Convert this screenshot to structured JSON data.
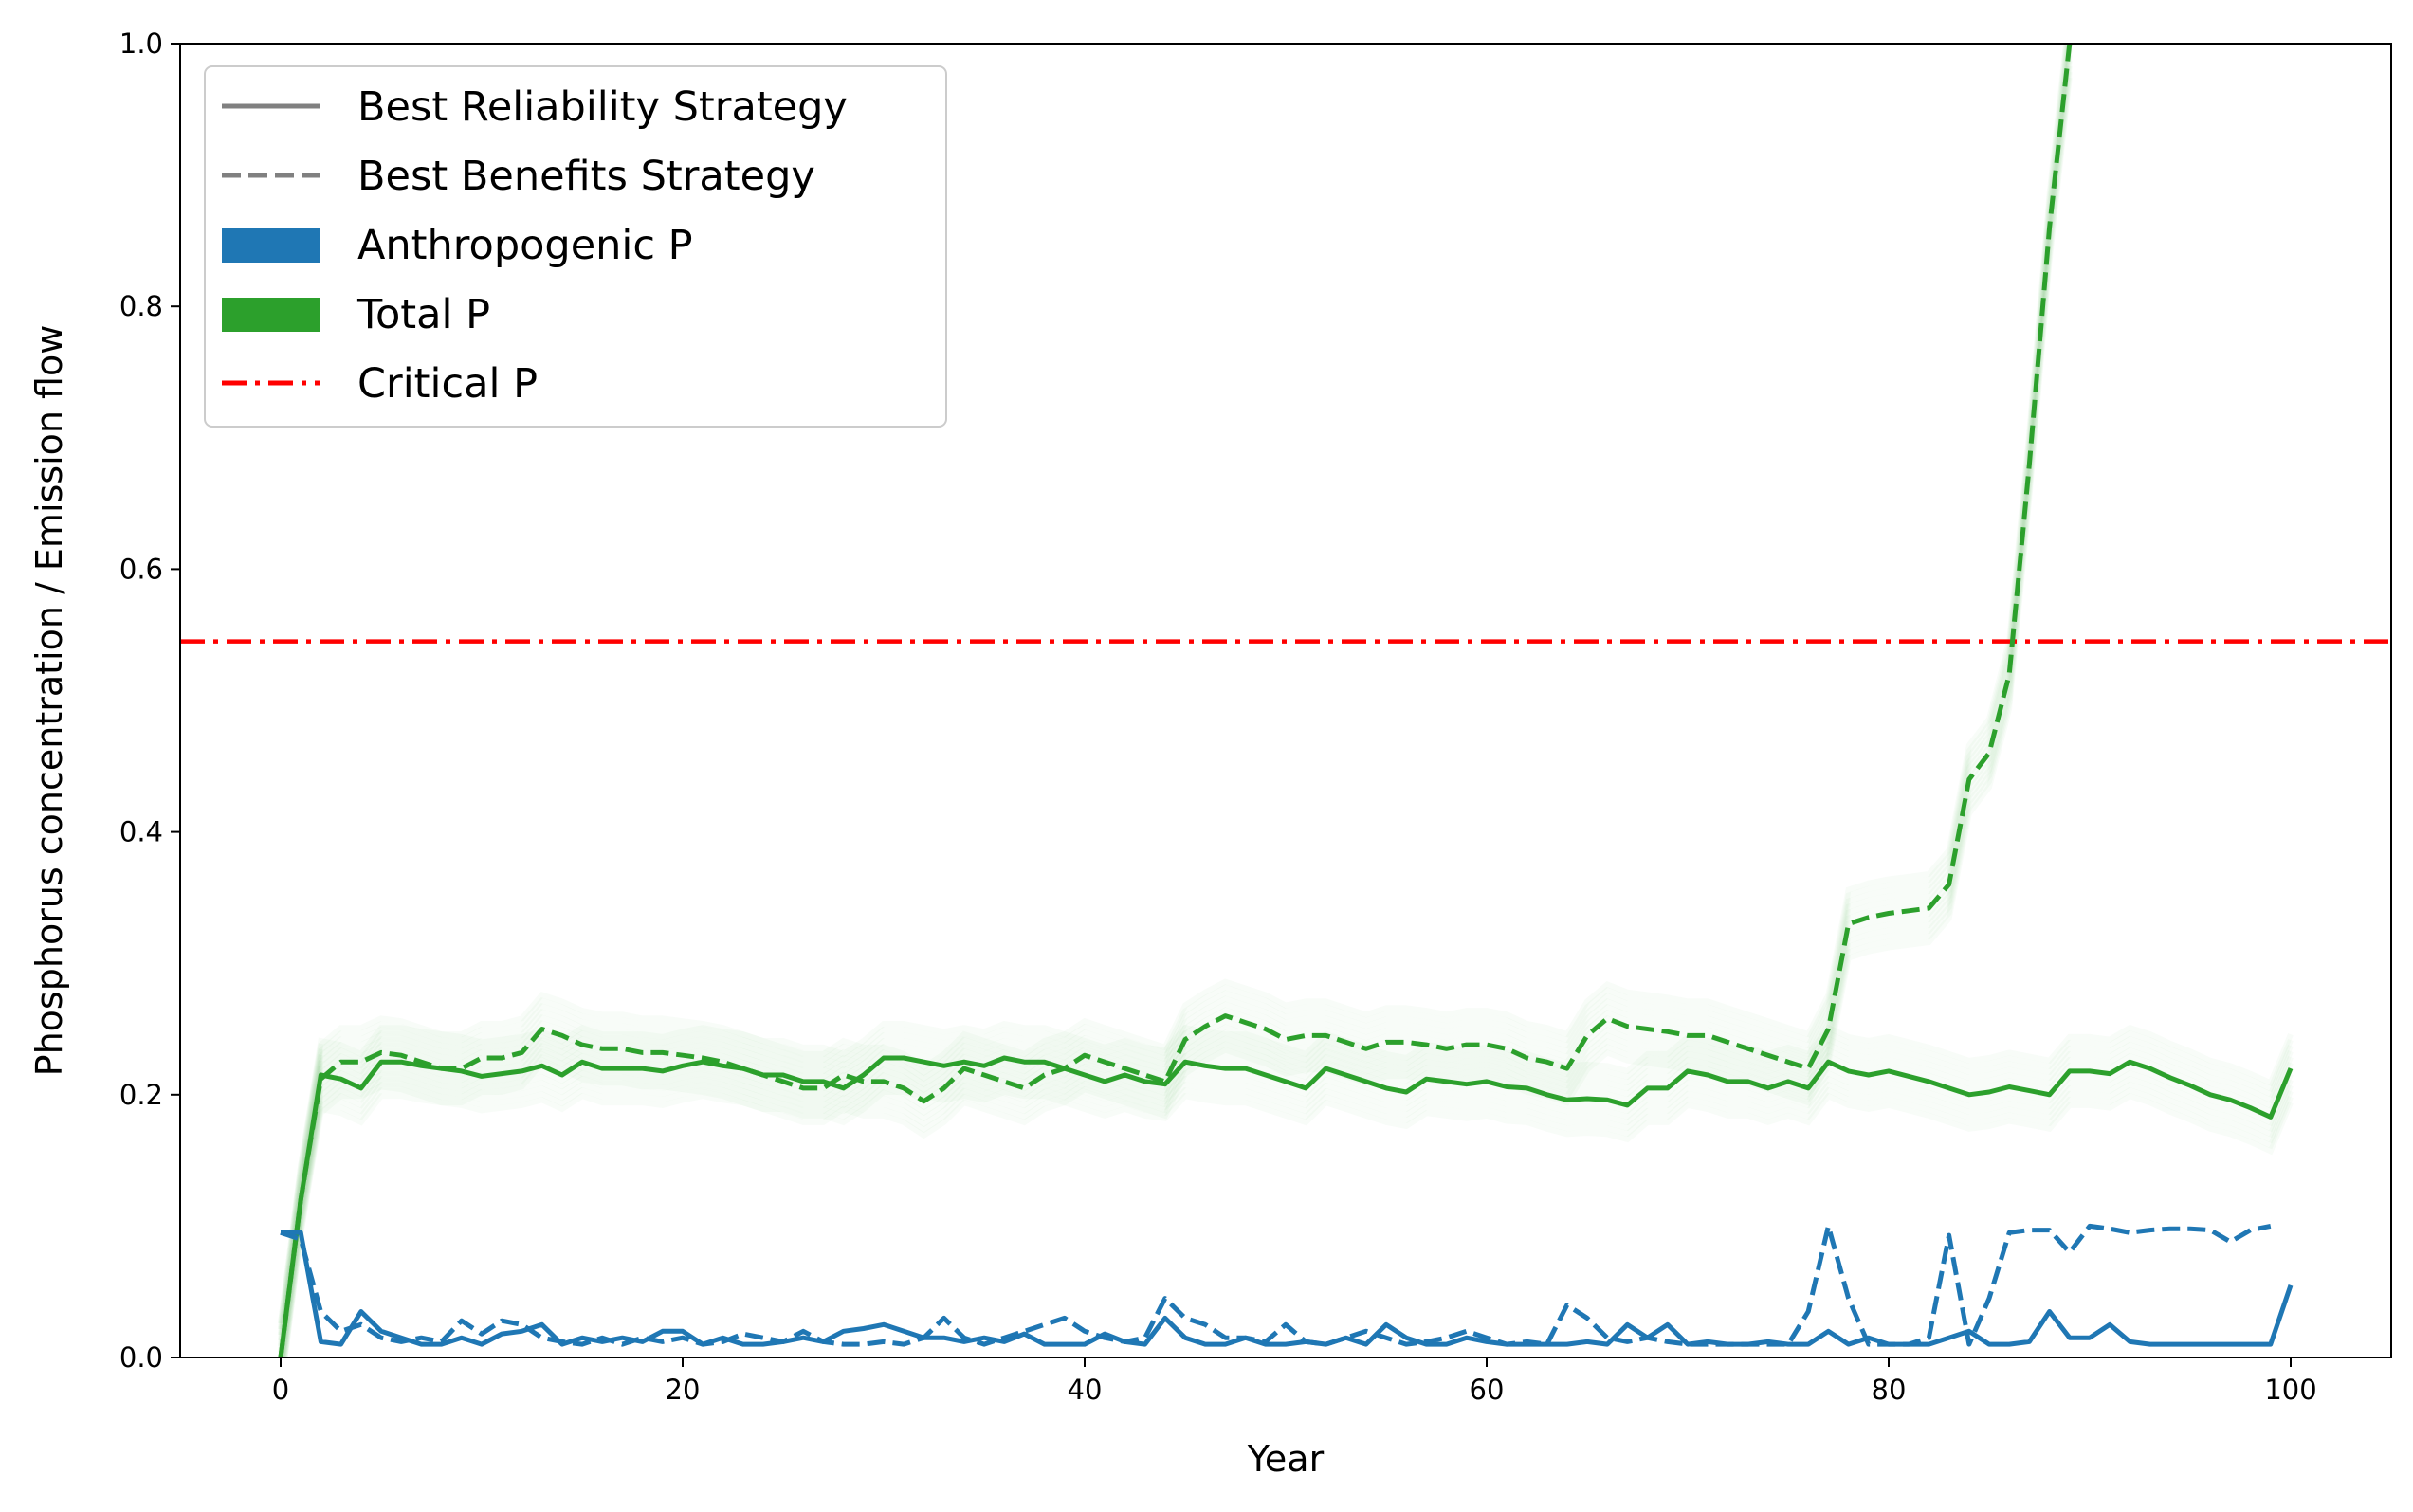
{
  "chart_data": {
    "type": "line",
    "xlabel": "Year",
    "ylabel": "Phosphorus concentration / Emission flow",
    "xlim": [
      -5,
      105
    ],
    "ylim": [
      0,
      1.0
    ],
    "xticks": [
      0,
      20,
      40,
      60,
      80,
      100
    ],
    "yticks": [
      0.0,
      0.2,
      0.4,
      0.6,
      0.8,
      1.0
    ],
    "ytick_labels": [
      "0.0",
      "0.2",
      "0.4",
      "0.6",
      "0.8",
      "1.0"
    ],
    "grid": false,
    "legend": {
      "placement": "top-left",
      "entries": [
        {
          "label": "Best Reliability Strategy",
          "style": "solid-line",
          "color": "#808080"
        },
        {
          "label": "Best Benefits Strategy",
          "style": "dashed-line",
          "color": "#808080"
        },
        {
          "label": "Anthropogenic P",
          "style": "patch",
          "color": "#1f77b4"
        },
        {
          "label": "Total P",
          "style": "patch",
          "color": "#2ca02c"
        },
        {
          "label": "Critical P",
          "style": "dashdot-line",
          "color": "#ff0000"
        }
      ]
    },
    "critical_p": 0.545,
    "colors": {
      "anthropogenic": "#1f77b4",
      "total": "#2ca02c",
      "critical": "#ff0000"
    },
    "series": [
      {
        "name": "Total P",
        "strategy": "Best Reliability Strategy",
        "style": "solid",
        "color": "#2ca02c",
        "x": [
          0,
          1,
          2,
          3,
          4,
          5,
          6,
          7,
          8,
          9,
          10,
          11,
          12,
          13,
          14,
          15,
          16,
          17,
          18,
          19,
          20,
          21,
          22,
          23,
          24,
          25,
          26,
          27,
          28,
          29,
          30,
          31,
          32,
          33,
          34,
          35,
          36,
          37,
          38,
          39,
          40,
          41,
          42,
          43,
          44,
          45,
          46,
          47,
          48,
          49,
          50,
          51,
          52,
          53,
          54,
          55,
          56,
          57,
          58,
          59,
          60,
          61,
          62,
          63,
          64,
          65,
          66,
          67,
          68,
          69,
          70,
          71,
          72,
          73,
          74,
          75,
          76,
          77,
          78,
          79,
          80,
          81,
          82,
          83,
          84,
          85,
          86,
          87,
          88,
          89,
          90,
          91,
          92,
          93,
          94,
          95,
          96,
          97,
          98,
          99,
          100
        ],
        "y": [
          0,
          0.12,
          0.215,
          0.212,
          0.205,
          0.225,
          0.225,
          0.222,
          0.22,
          0.218,
          0.214,
          0.216,
          0.218,
          0.222,
          0.215,
          0.225,
          0.22,
          0.22,
          0.22,
          0.218,
          0.222,
          0.225,
          0.222,
          0.22,
          0.215,
          0.215,
          0.21,
          0.21,
          0.205,
          0.215,
          0.228,
          0.228,
          0.225,
          0.222,
          0.225,
          0.222,
          0.228,
          0.225,
          0.225,
          0.22,
          0.215,
          0.21,
          0.215,
          0.21,
          0.208,
          0.225,
          0.222,
          0.22,
          0.22,
          0.215,
          0.21,
          0.205,
          0.22,
          0.215,
          0.21,
          0.205,
          0.202,
          0.212,
          0.21,
          0.208,
          0.21,
          0.206,
          0.205,
          0.2,
          0.196,
          0.197,
          0.196,
          0.192,
          0.205,
          0.205,
          0.218,
          0.215,
          0.21,
          0.21,
          0.205,
          0.21,
          0.205,
          0.225,
          0.218,
          0.215,
          0.218,
          0.214,
          0.21,
          0.205,
          0.2,
          0.202,
          0.206,
          0.203,
          0.2,
          0.218,
          0.218,
          0.216,
          0.225,
          0.22,
          0.213,
          0.207,
          0.2,
          0.196,
          0.19,
          0.183,
          0.22
        ]
      },
      {
        "name": "Total P",
        "strategy": "Best Benefits Strategy",
        "style": "dashed",
        "color": "#2ca02c",
        "x": [
          0,
          1,
          2,
          3,
          4,
          5,
          6,
          7,
          8,
          9,
          10,
          11,
          12,
          13,
          14,
          15,
          16,
          17,
          18,
          19,
          20,
          21,
          22,
          23,
          24,
          25,
          26,
          27,
          28,
          29,
          30,
          31,
          32,
          33,
          34,
          35,
          36,
          37,
          38,
          39,
          40,
          41,
          42,
          43,
          44,
          45,
          46,
          47,
          48,
          49,
          50,
          51,
          52,
          53,
          54,
          55,
          56,
          57,
          58,
          59,
          60,
          61,
          62,
          63,
          64,
          65,
          66,
          67,
          68,
          69,
          70,
          71,
          72,
          73,
          74,
          75,
          76,
          77,
          78,
          79,
          80,
          81,
          82,
          83,
          84,
          85,
          86,
          87,
          88,
          89
        ],
        "y": [
          0,
          0.12,
          0.212,
          0.225,
          0.225,
          0.232,
          0.23,
          0.225,
          0.22,
          0.22,
          0.228,
          0.228,
          0.232,
          0.25,
          0.245,
          0.238,
          0.235,
          0.235,
          0.232,
          0.232,
          0.23,
          0.228,
          0.225,
          0.22,
          0.215,
          0.21,
          0.205,
          0.205,
          0.215,
          0.21,
          0.21,
          0.205,
          0.195,
          0.205,
          0.22,
          0.215,
          0.21,
          0.205,
          0.215,
          0.22,
          0.23,
          0.225,
          0.22,
          0.215,
          0.21,
          0.242,
          0.252,
          0.26,
          0.255,
          0.25,
          0.242,
          0.245,
          0.245,
          0.24,
          0.235,
          0.24,
          0.24,
          0.238,
          0.235,
          0.238,
          0.238,
          0.235,
          0.228,
          0.225,
          0.22,
          0.245,
          0.258,
          0.252,
          0.25,
          0.248,
          0.245,
          0.245,
          0.24,
          0.235,
          0.23,
          0.225,
          0.22,
          0.25,
          0.33,
          0.335,
          0.338,
          0.34,
          0.342,
          0.36,
          0.44,
          0.46,
          0.52,
          0.68,
          0.86,
          1.0
        ]
      },
      {
        "name": "Anthropogenic P",
        "strategy": "Best Reliability Strategy",
        "style": "solid",
        "color": "#1f77b4",
        "x": [
          0,
          1,
          2,
          3,
          4,
          5,
          6,
          7,
          8,
          9,
          10,
          11,
          12,
          13,
          14,
          15,
          16,
          17,
          18,
          19,
          20,
          21,
          22,
          23,
          24,
          25,
          26,
          27,
          28,
          29,
          30,
          31,
          32,
          33,
          34,
          35,
          36,
          37,
          38,
          39,
          40,
          41,
          42,
          43,
          44,
          45,
          46,
          47,
          48,
          49,
          50,
          51,
          52,
          53,
          54,
          55,
          56,
          57,
          58,
          59,
          60,
          61,
          62,
          63,
          64,
          65,
          66,
          67,
          68,
          69,
          70,
          71,
          72,
          73,
          74,
          75,
          76,
          77,
          78,
          79,
          80,
          81,
          82,
          83,
          84,
          85,
          86,
          87,
          88,
          89,
          90,
          91,
          92,
          93,
          94,
          95,
          96,
          97,
          98,
          99,
          100
        ],
        "y": [
          0.095,
          0.095,
          0.012,
          0.01,
          0.035,
          0.02,
          0.015,
          0.01,
          0.01,
          0.015,
          0.01,
          0.018,
          0.02,
          0.025,
          0.01,
          0.015,
          0.012,
          0.015,
          0.012,
          0.02,
          0.02,
          0.01,
          0.015,
          0.01,
          0.01,
          0.012,
          0.015,
          0.012,
          0.02,
          0.022,
          0.025,
          0.02,
          0.015,
          0.015,
          0.012,
          0.015,
          0.012,
          0.018,
          0.01,
          0.01,
          0.01,
          0.018,
          0.012,
          0.01,
          0.03,
          0.015,
          0.01,
          0.01,
          0.015,
          0.01,
          0.01,
          0.012,
          0.01,
          0.015,
          0.01,
          0.025,
          0.015,
          0.01,
          0.01,
          0.015,
          0.012,
          0.01,
          0.01,
          0.01,
          0.01,
          0.012,
          0.01,
          0.025,
          0.015,
          0.025,
          0.01,
          0.012,
          0.01,
          0.01,
          0.012,
          0.01,
          0.01,
          0.02,
          0.01,
          0.015,
          0.01,
          0.01,
          0.01,
          0.015,
          0.02,
          0.01,
          0.01,
          0.012,
          0.035,
          0.015,
          0.015,
          0.025,
          0.012,
          0.01,
          0.01,
          0.01,
          0.01,
          0.01,
          0.01,
          0.01,
          0.055
        ]
      },
      {
        "name": "Anthropogenic P",
        "strategy": "Best Benefits Strategy",
        "style": "dashed",
        "color": "#1f77b4",
        "x": [
          0,
          1,
          2,
          3,
          4,
          5,
          6,
          7,
          8,
          9,
          10,
          11,
          12,
          13,
          14,
          15,
          16,
          17,
          18,
          19,
          20,
          21,
          22,
          23,
          24,
          25,
          26,
          27,
          28,
          29,
          30,
          31,
          32,
          33,
          34,
          35,
          36,
          37,
          38,
          39,
          40,
          41,
          42,
          43,
          44,
          45,
          46,
          47,
          48,
          49,
          50,
          51,
          52,
          53,
          54,
          55,
          56,
          57,
          58,
          59,
          60,
          61,
          62,
          63,
          64,
          65,
          66,
          67,
          68,
          69,
          70,
          71,
          72,
          73,
          74,
          75,
          76,
          77,
          78,
          79,
          80,
          81,
          82,
          83,
          84,
          85,
          86,
          87,
          88,
          89,
          90,
          91,
          92,
          93,
          94,
          95,
          96,
          97,
          98,
          99
        ],
        "y": [
          0.095,
          0.09,
          0.035,
          0.02,
          0.025,
          0.015,
          0.012,
          0.015,
          0.012,
          0.028,
          0.018,
          0.028,
          0.025,
          0.015,
          0.012,
          0.01,
          0.015,
          0.01,
          0.015,
          0.012,
          0.015,
          0.01,
          0.012,
          0.018,
          0.015,
          0.012,
          0.02,
          0.012,
          0.01,
          0.01,
          0.012,
          0.01,
          0.015,
          0.03,
          0.015,
          0.01,
          0.015,
          0.02,
          0.025,
          0.03,
          0.02,
          0.015,
          0.012,
          0.015,
          0.045,
          0.03,
          0.025,
          0.015,
          0.015,
          0.012,
          0.025,
          0.012,
          0.01,
          0.015,
          0.02,
          0.015,
          0.01,
          0.012,
          0.015,
          0.02,
          0.015,
          0.01,
          0.012,
          0.01,
          0.04,
          0.03,
          0.015,
          0.012,
          0.015,
          0.012,
          0.01,
          0.01,
          0.01,
          0.01,
          0.01,
          0.01,
          0.035,
          0.1,
          0.045,
          0.01,
          0.01,
          0.01,
          0.015,
          0.093,
          0.01,
          0.045,
          0.095,
          0.097,
          0.097,
          0.08,
          0.1,
          0.098,
          0.095,
          0.097,
          0.098,
          0.098,
          0.097,
          0.088,
          0.097,
          0.1
        ]
      }
    ]
  }
}
